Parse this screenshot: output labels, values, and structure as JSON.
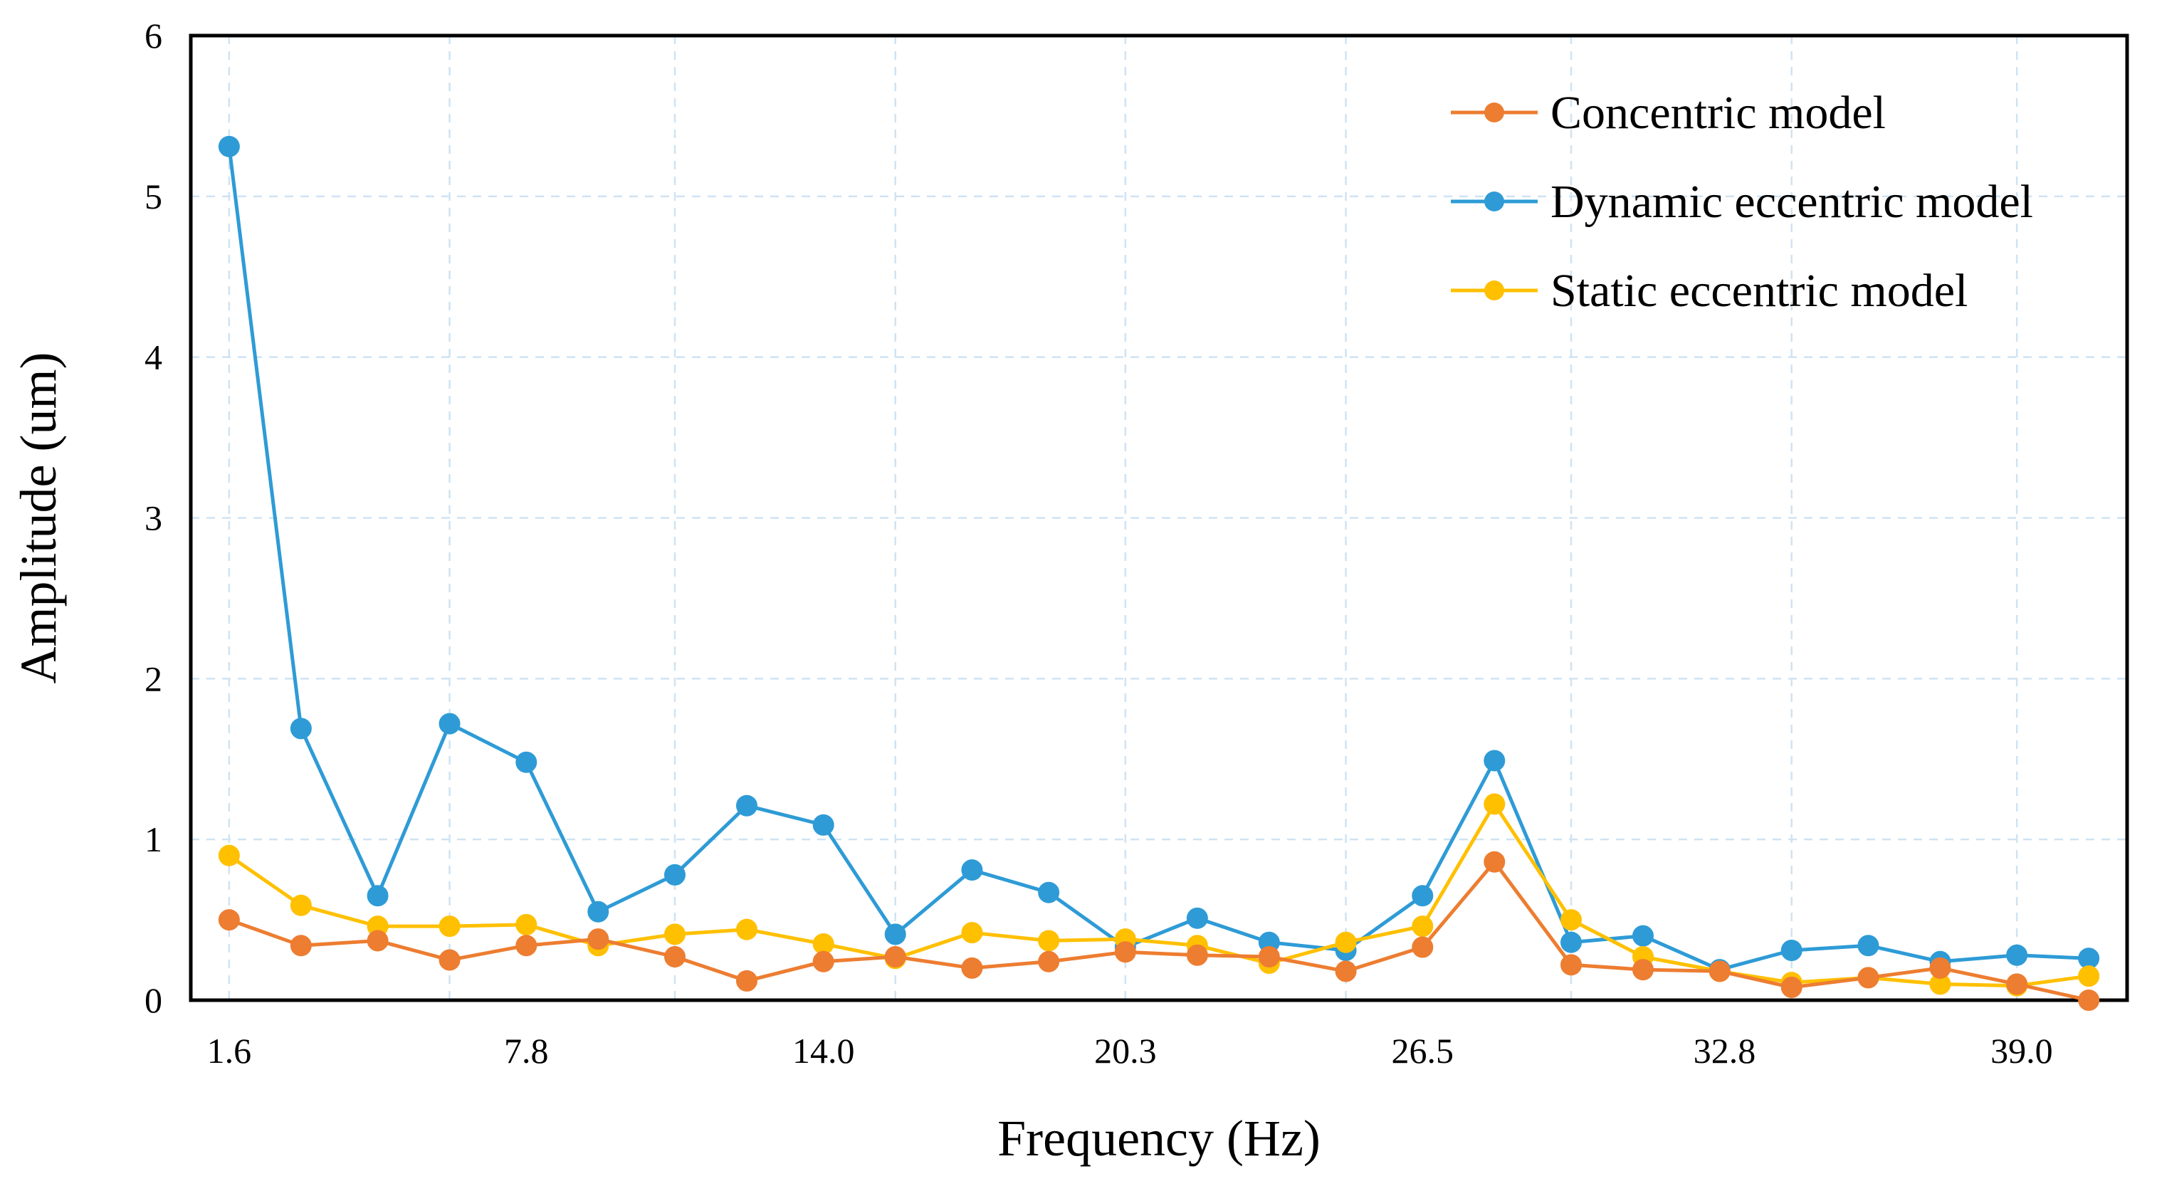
{
  "chart_data": {
    "type": "line",
    "title": "",
    "xlabel": "Frequency  (Hz)",
    "ylabel": "Amplitude  (um)",
    "x": [
      1.6,
      3.1,
      4.7,
      6.2,
      7.8,
      9.3,
      10.9,
      12.4,
      14.0,
      15.5,
      17.1,
      18.7,
      20.3,
      21.8,
      23.3,
      24.9,
      26.5,
      28.0,
      29.6,
      31.1,
      32.7,
      34.2,
      35.8,
      37.3,
      38.9,
      40.4
    ],
    "xlim": [
      0.8,
      41.2
    ],
    "xticks": [
      1.6,
      7.8,
      14.0,
      20.3,
      26.5,
      32.8,
      39.0
    ],
    "xtick_labels": [
      "1.6",
      "7.8",
      "14.0",
      "20.3",
      "26.5",
      "32.8",
      "39.0"
    ],
    "ylim": [
      0,
      6
    ],
    "yticks": [
      0,
      1,
      2,
      3,
      4,
      5,
      6
    ],
    "ytick_labels": [
      "0",
      "1",
      "2",
      "3",
      "4",
      "5",
      "6"
    ],
    "grid": true,
    "legend_position": "top-right",
    "series": [
      {
        "name": "Concentric model",
        "color": "#ED7D31",
        "values": [
          0.5,
          0.34,
          0.37,
          0.25,
          0.34,
          0.38,
          0.27,
          0.12,
          0.24,
          0.27,
          0.2,
          0.24,
          0.3,
          0.28,
          0.27,
          0.18,
          0.33,
          0.86,
          0.22,
          0.19,
          0.18,
          0.08,
          0.14,
          0.2,
          0.1,
          0.0
        ]
      },
      {
        "name": "Dynamic eccentric model",
        "color": "#2E9BD6",
        "values": [
          5.31,
          1.69,
          0.65,
          1.72,
          1.48,
          0.55,
          0.78,
          1.21,
          1.09,
          0.41,
          0.81,
          0.67,
          0.33,
          0.51,
          0.36,
          0.31,
          0.65,
          1.49,
          0.36,
          0.4,
          0.19,
          0.31,
          0.34,
          0.24,
          0.28,
          0.26
        ]
      },
      {
        "name": "Static eccentric model",
        "color": "#FFC000",
        "values": [
          0.9,
          0.59,
          0.46,
          0.46,
          0.47,
          0.34,
          0.41,
          0.44,
          0.35,
          0.26,
          0.42,
          0.37,
          0.38,
          0.34,
          0.23,
          0.36,
          0.46,
          1.22,
          0.5,
          0.27,
          0.18,
          0.11,
          0.14,
          0.1,
          0.09,
          0.15
        ]
      }
    ]
  }
}
